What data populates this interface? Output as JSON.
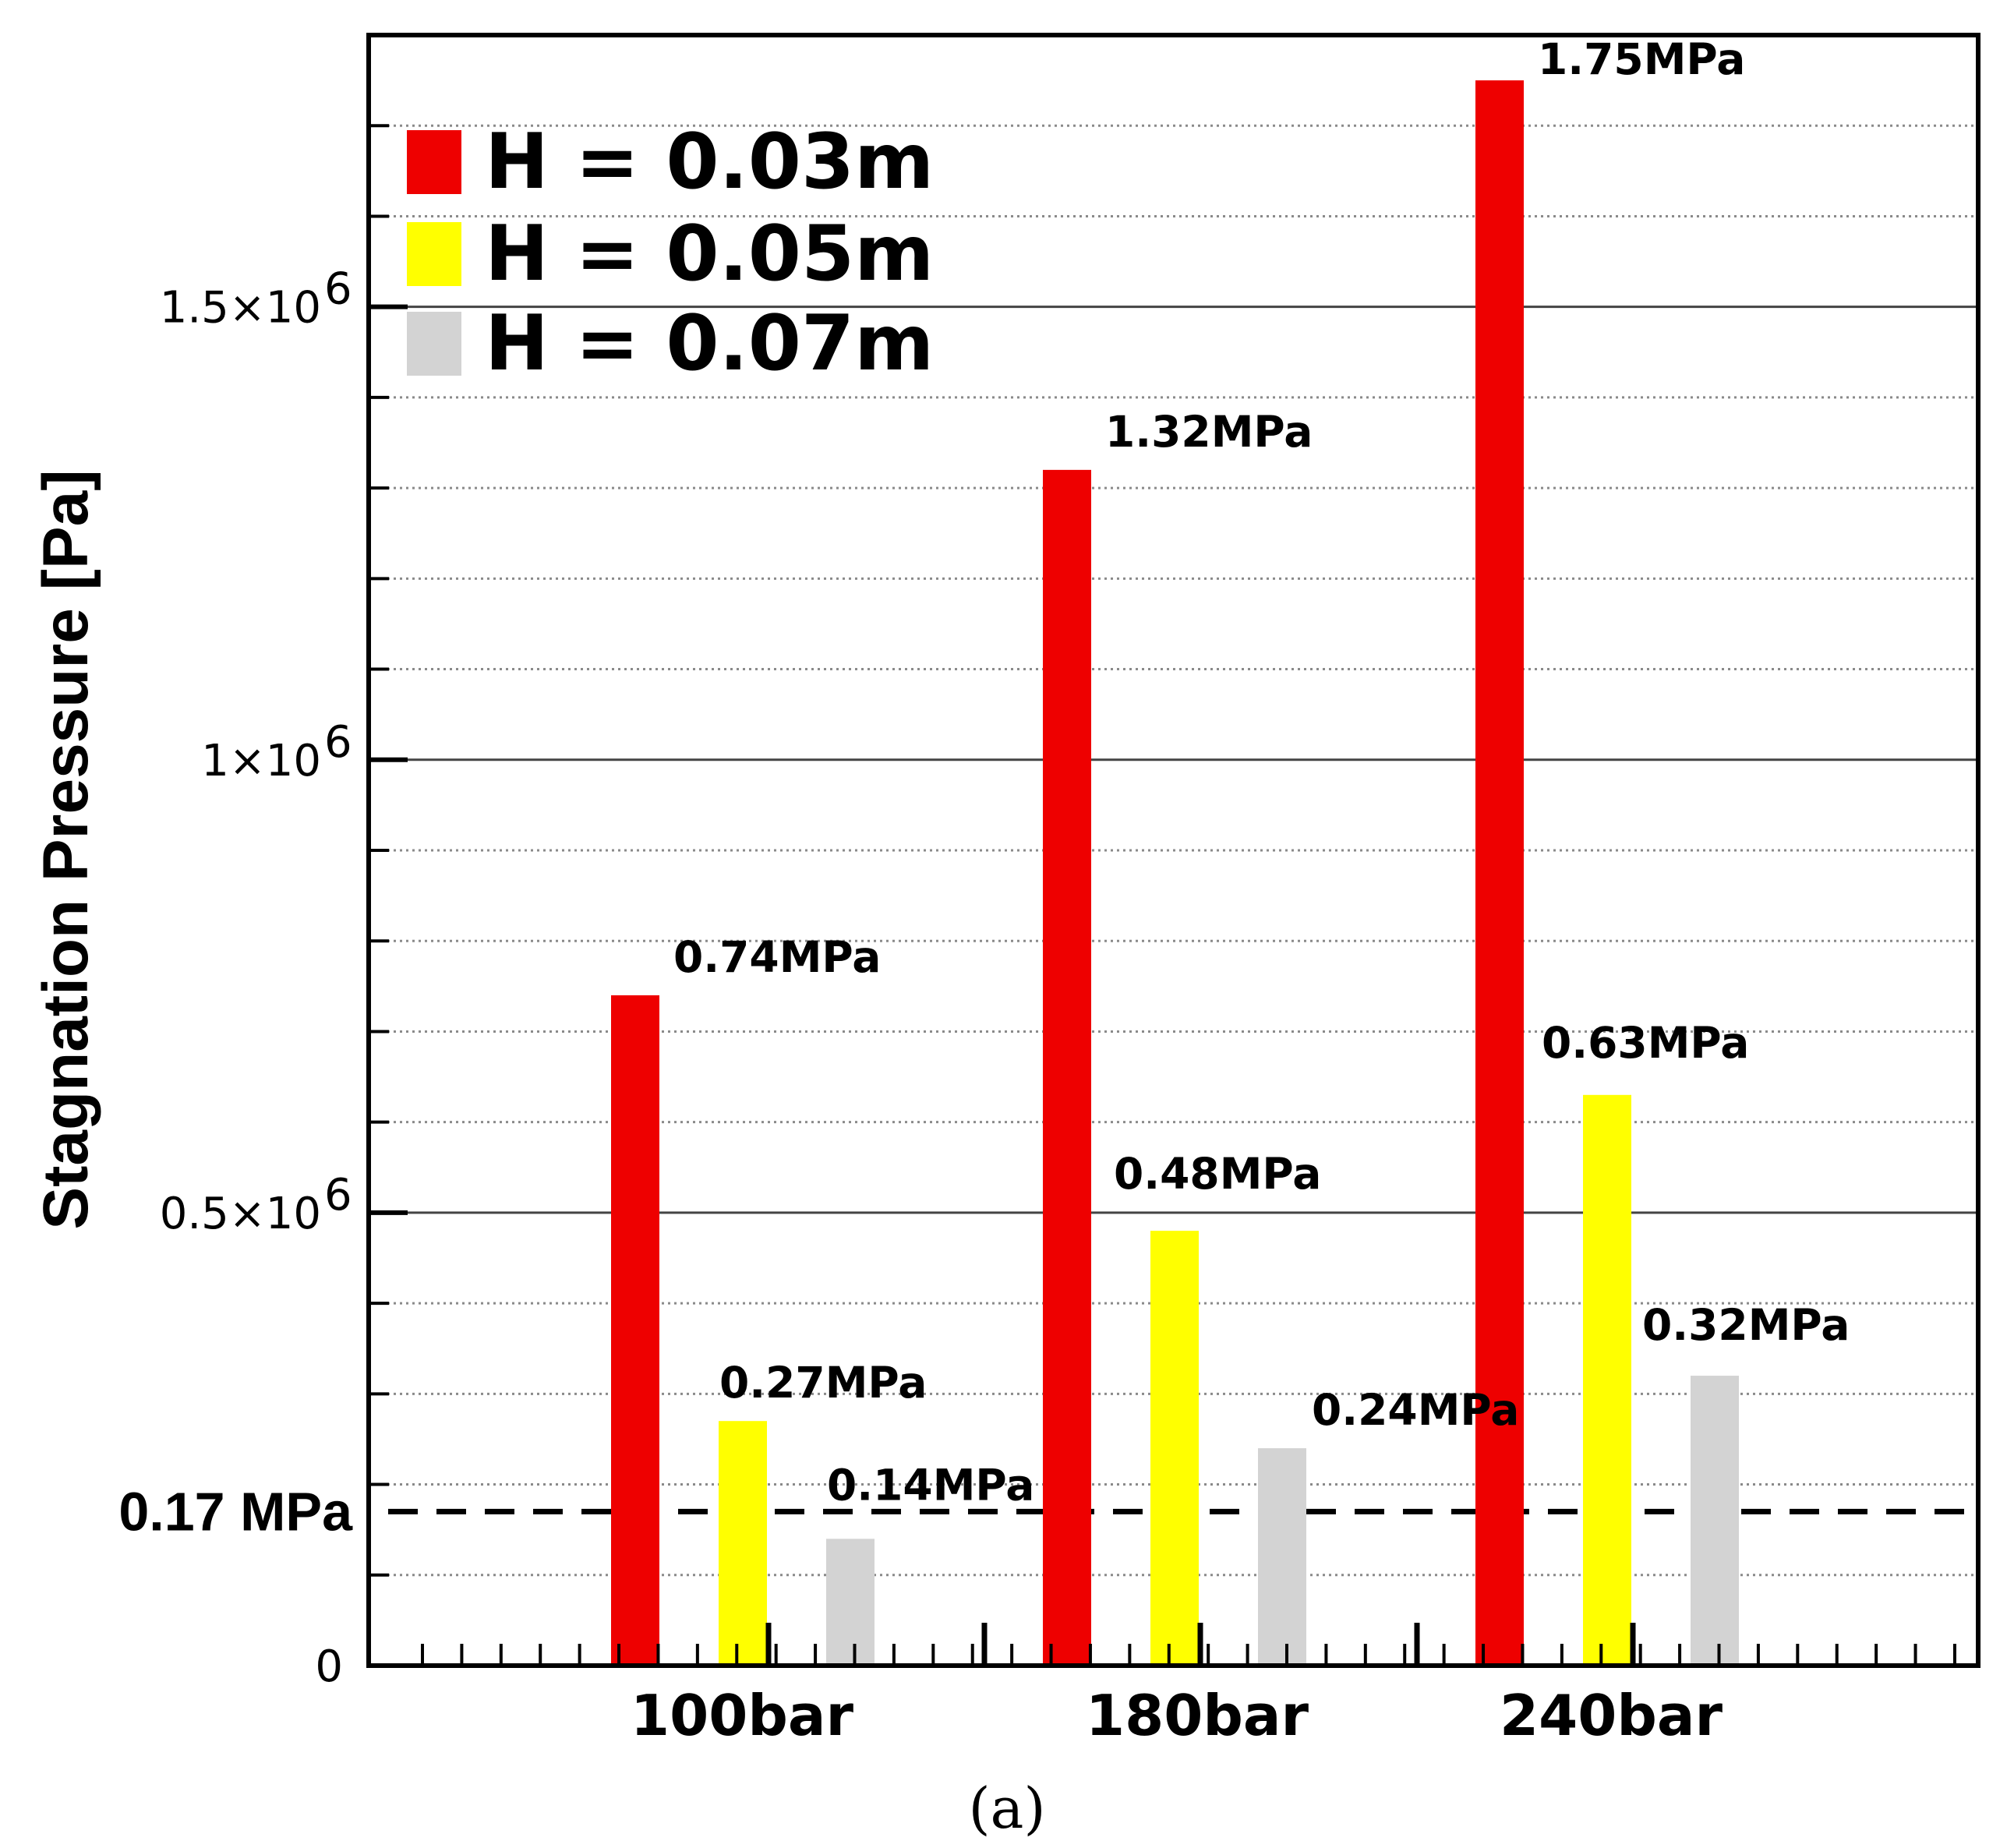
{
  "chart_data": {
    "type": "bar",
    "title": "",
    "xlabel": "",
    "ylabel": "Stagnation Pressure [Pa]",
    "categories": [
      "100bar",
      "180bar",
      "240bar"
    ],
    "series": [
      {
        "name": "H = 0.03m",
        "color": "#ee0000",
        "values": [
          740000,
          1320000,
          1750000
        ],
        "labels": [
          "0.74MPa",
          "1.32MPa",
          "1.75MPa"
        ]
      },
      {
        "name": "H = 0.05m",
        "color": "#ffff00",
        "values": [
          270000,
          480000,
          630000
        ],
        "labels": [
          "0.27MPa",
          "0.48MPa",
          "0.63MPa"
        ]
      },
      {
        "name": "H = 0.07m",
        "color": "#d3d3d3",
        "values": [
          140000,
          240000,
          320000
        ],
        "labels": [
          "0.14MPa",
          "0.24MPa",
          "0.32MPa"
        ]
      }
    ],
    "ylim": [
      0,
      1800000
    ],
    "yticks": [
      {
        "value": 0,
        "mantissa": "0",
        "exponent": ""
      },
      {
        "value": 500000,
        "mantissa": "0.5×10",
        "exponent": "6"
      },
      {
        "value": 1000000,
        "mantissa": "1×10",
        "exponent": "6"
      },
      {
        "value": 1500000,
        "mantissa": "1.5×10",
        "exponent": "6"
      }
    ],
    "reference_line": {
      "value": 170000,
      "label": "0.17 MPa",
      "style": "dashed"
    },
    "grid": true,
    "legend_position": "top-left",
    "caption": "(a)"
  }
}
